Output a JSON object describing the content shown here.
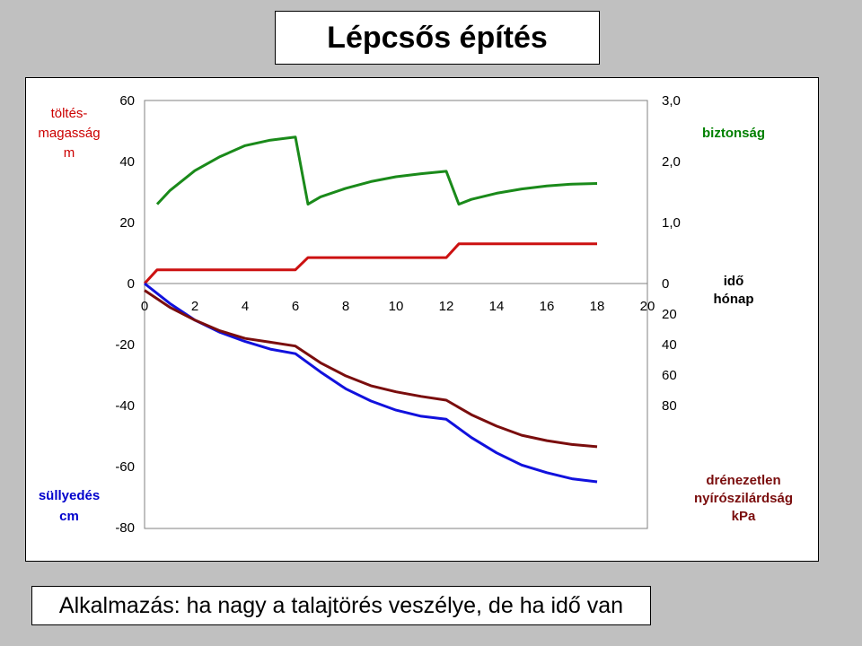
{
  "title": "Lépcsős építés",
  "caption": "Alkalmazás: ha nagy a talajtörés veszélye, de ha idő van",
  "colors": {
    "fill_height": "#cc1111",
    "safety": "#1a8a1a",
    "settlement": "#1111dd",
    "shear_strength": "#7a0d0d",
    "axis_label_red": "#cc0000",
    "axis_label_blue": "#0000cc",
    "axis_label_green": "#008000",
    "axis_label_darkred": "#7a0d0d"
  },
  "axes": {
    "left_top_label": [
      "töltés-",
      "magasság",
      "m"
    ],
    "left_bottom_label": [
      "süllyedés",
      "cm"
    ],
    "right_top_label": "biztonság",
    "right_bottom_label": [
      "drénezetlen",
      "nyírószilárdság",
      "kPa"
    ],
    "x_label": [
      "idő",
      "hónap"
    ],
    "left_ticks": [
      "60",
      "40",
      "20",
      "0",
      "-20",
      "-40",
      "-60",
      "-80"
    ],
    "right_top_ticks": [
      "3,0",
      "2,0",
      "1,0",
      "0"
    ],
    "right_bottom_ticks": [
      "20",
      "40",
      "60",
      "80"
    ],
    "x_ticks": [
      "0",
      "2",
      "4",
      "6",
      "8",
      "10",
      "12",
      "14",
      "16",
      "18",
      "20"
    ]
  },
  "chart_data": {
    "type": "line",
    "title": "Lépcsős építés",
    "xlabel": "idő hónap",
    "xlim": [
      0,
      20
    ],
    "series": [
      {
        "name": "töltésmagasság",
        "axis": "left",
        "unit": "m",
        "x": [
          0,
          0.5,
          6,
          6.5,
          12,
          12.5,
          18
        ],
        "y": [
          0,
          4.5,
          4.5,
          8.5,
          8.5,
          13,
          13
        ]
      },
      {
        "name": "süllyedés",
        "axis": "left",
        "unit": "cm",
        "x": [
          0,
          1,
          2,
          3,
          4,
          5,
          6,
          7,
          8,
          9,
          10,
          11,
          12,
          13,
          14,
          15,
          16,
          17,
          18
        ],
        "y": [
          0,
          -6.5,
          -12,
          -16,
          -19,
          -21.5,
          -23,
          -29,
          -34.5,
          -38.5,
          -41.5,
          -43.5,
          -44.5,
          -50.5,
          -55.5,
          -59.5,
          -62,
          -64,
          -65
        ]
      },
      {
        "name": "biztonság",
        "axis": "right_top",
        "x": [
          0.5,
          1,
          2,
          3,
          4,
          5,
          6,
          6.5,
          7,
          8,
          9,
          10,
          11,
          12,
          12.5,
          13,
          14,
          15,
          16,
          17,
          18
        ],
        "y": [
          1.3,
          1.52,
          1.85,
          2.08,
          2.26,
          2.35,
          2.4,
          1.3,
          1.42,
          1.56,
          1.67,
          1.75,
          1.8,
          1.84,
          1.3,
          1.38,
          1.48,
          1.55,
          1.6,
          1.63,
          1.64
        ]
      },
      {
        "name": "drénezetlen nyírószilárdság",
        "axis": "right_bottom",
        "unit": "kPa",
        "x": [
          0,
          1,
          2,
          3,
          4,
          5,
          6,
          7,
          8,
          9,
          10,
          11,
          12,
          13,
          14,
          15,
          16,
          17,
          18
        ],
        "y": [
          4.5,
          15.5,
          24,
          31,
          36,
          38.5,
          41,
          52,
          60.5,
          67,
          71,
          74,
          76.5,
          86,
          93.5,
          99.5,
          103,
          105.5,
          107
        ]
      }
    ]
  }
}
